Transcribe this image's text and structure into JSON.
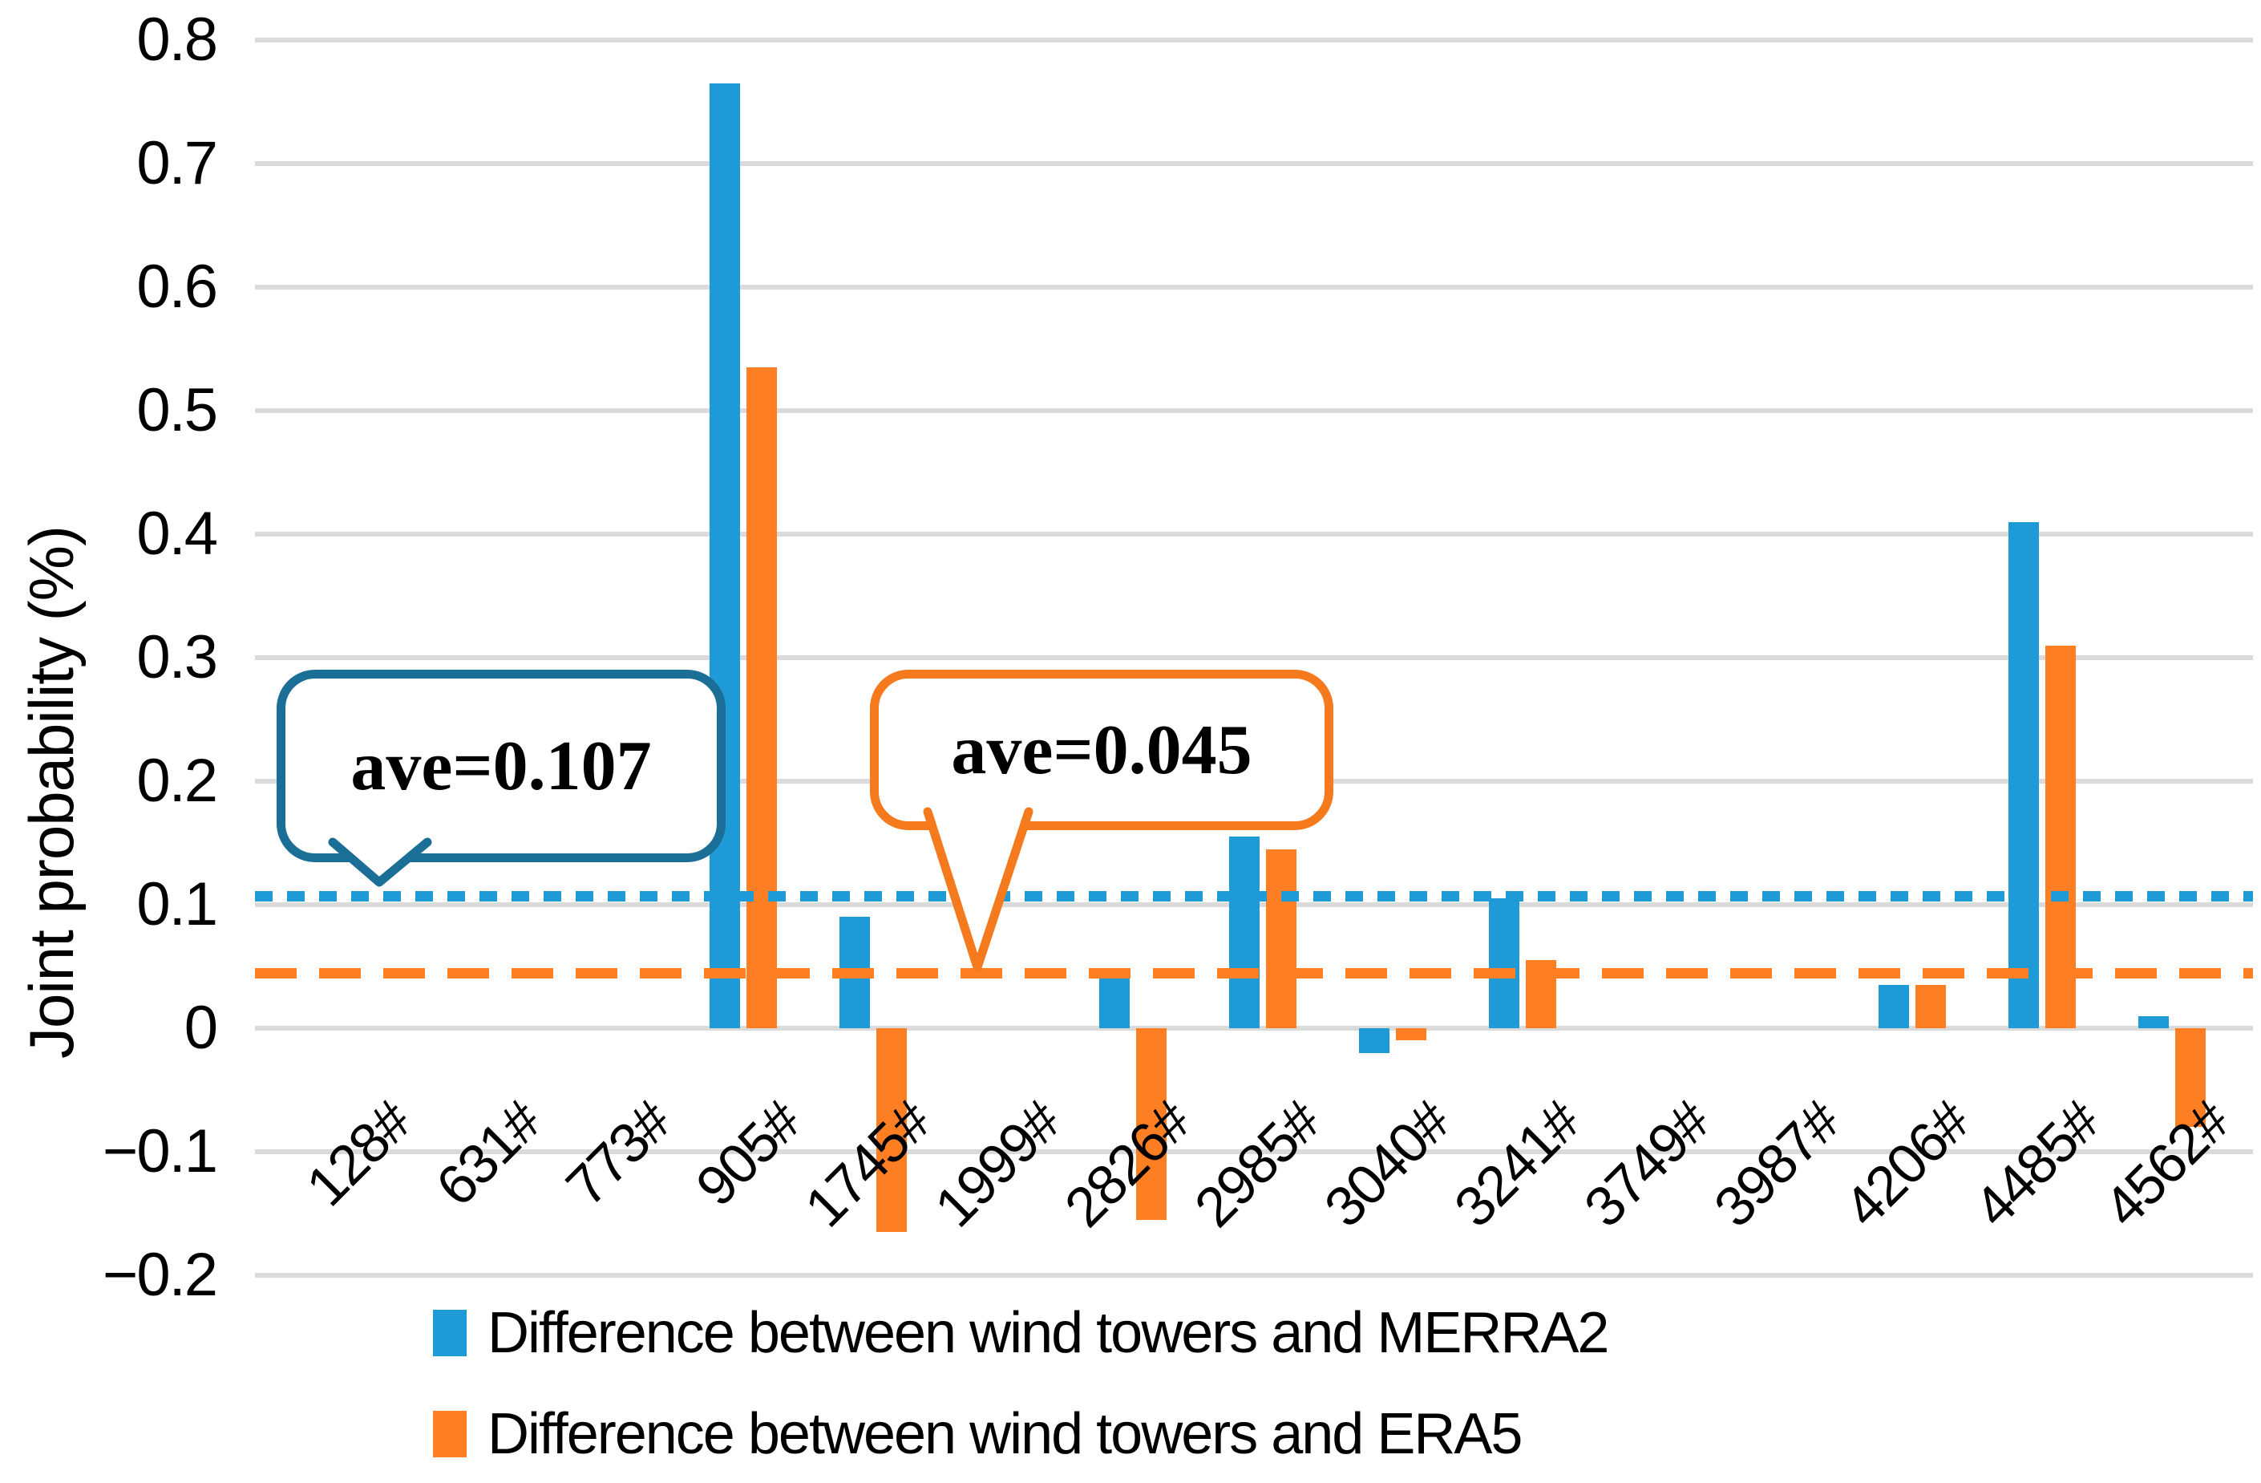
{
  "figure": {
    "background": "#FFFFFF"
  },
  "y_axis": {
    "title": "Joint probability (%)",
    "ticks": [
      {
        "label": "0.8",
        "value": 0.8
      },
      {
        "label": "0.7",
        "value": 0.7
      },
      {
        "label": "0.6",
        "value": 0.6
      },
      {
        "label": "0.5",
        "value": 0.5
      },
      {
        "label": "0.4",
        "value": 0.4
      },
      {
        "label": "0.3",
        "value": 0.3
      },
      {
        "label": "0.2",
        "value": 0.2
      },
      {
        "label": "0.1",
        "value": 0.1
      },
      {
        "label": "0",
        "value": 0
      },
      {
        "label": "−0.1",
        "value": -0.1
      },
      {
        "label": "−0.2",
        "value": -0.2
      }
    ]
  },
  "chart_data": {
    "type": "bar",
    "title": "",
    "xlabel": "",
    "ylabel": "Joint probability (%)",
    "ylim": [
      -0.2,
      0.8
    ],
    "grid": true,
    "legend_position": "bottom",
    "categories": [
      "128#",
      "631#",
      "773#",
      "905#",
      "1745#",
      "1999#",
      "2826#",
      "2985#",
      "3040#",
      "3241#",
      "3749#",
      "3987#",
      "4206#",
      "4485#",
      "4562#"
    ],
    "series": [
      {
        "name": "Difference between wind towers and MERRA2",
        "color": "#1E9AD7",
        "values": [
          0,
          0,
          0,
          0.765,
          0.09,
          0,
          0.045,
          0.155,
          -0.02,
          0.105,
          0,
          0,
          0.035,
          0.41,
          0.01
        ],
        "average": 0.107,
        "average_line_style": "dotted"
      },
      {
        "name": "Difference between wind towers and ERA5",
        "color": "#FD7E23",
        "values": [
          0,
          0,
          0,
          0.535,
          -0.165,
          0,
          -0.155,
          0.145,
          -0.01,
          0.055,
          0,
          0,
          0.035,
          0.31,
          -0.08
        ],
        "average": 0.045,
        "average_line_style": "dashed"
      }
    ]
  },
  "annotations": {
    "merra2_average_callout": {
      "text": "ave=0.107",
      "border_color": "#1B6E96"
    },
    "era5_average_callout": {
      "text": "ave=0.045",
      "border_color": "#F5791D"
    }
  },
  "legend": {
    "items": [
      {
        "label": "Difference between wind towers and MERRA2",
        "color": "#1E9AD7"
      },
      {
        "label": "Difference between wind towers and ERA5",
        "color": "#FD7E23"
      }
    ]
  },
  "colors": {
    "gridline": "#DADADA",
    "background": "#FFFFFF",
    "merra2_blue": "#1E9AD7",
    "era5_orange": "#FD7E23",
    "callout_blue_border": "#1B6E96",
    "callout_orange_border": "#F5791D"
  }
}
